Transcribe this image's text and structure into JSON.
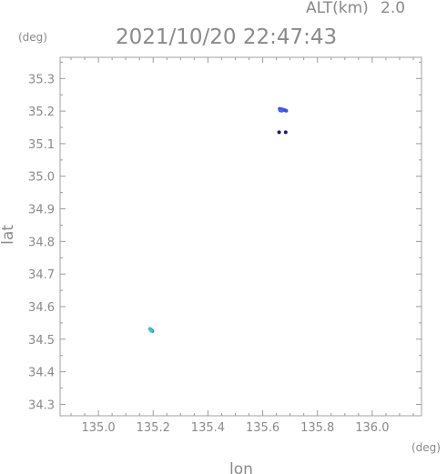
{
  "header": {
    "alt_label": "ALT(km)",
    "alt_value": "2.0",
    "timestamp": "2021/10/20 22:47:43"
  },
  "colors": {
    "axis": "#9a9a9a",
    "text": "#8a8a8a",
    "frame": "#a0a0a0"
  },
  "chart_data": {
    "type": "scatter",
    "xlabel": "lon",
    "ylabel": "lat",
    "x_unit": "(deg)",
    "y_unit": "(deg)",
    "xlim": [
      134.86,
      136.18
    ],
    "ylim": [
      34.265,
      35.365
    ],
    "x_ticks": [
      135.0,
      135.2,
      135.4,
      135.6,
      135.8,
      136.0
    ],
    "x_tick_labels": [
      "135.0",
      "135.2",
      "135.4",
      "135.6",
      "135.8",
      "136.0"
    ],
    "y_ticks": [
      34.3,
      34.4,
      34.5,
      34.6,
      34.7,
      34.8,
      34.9,
      35.0,
      35.1,
      35.2,
      35.3
    ],
    "y_tick_labels": [
      "34.3",
      "34.4",
      "34.5",
      "34.6",
      "34.7",
      "34.8",
      "34.9",
      "35.0",
      "35.1",
      "35.2",
      "35.3"
    ],
    "grid": false,
    "points": [
      {
        "x": 135.662,
        "y": 35.207,
        "color": "#3b4ff0"
      },
      {
        "x": 135.667,
        "y": 35.206,
        "color": "#3b4ff0"
      },
      {
        "x": 135.671,
        "y": 35.205,
        "color": "#3b4ff0"
      },
      {
        "x": 135.675,
        "y": 35.204,
        "color": "#3b4ff0"
      },
      {
        "x": 135.679,
        "y": 35.203,
        "color": "#3b4ff0"
      },
      {
        "x": 135.683,
        "y": 35.202,
        "color": "#3b4ff0"
      },
      {
        "x": 135.686,
        "y": 35.201,
        "color": "#3b4ff0"
      },
      {
        "x": 135.664,
        "y": 35.202,
        "color": "#4060ff"
      },
      {
        "x": 135.67,
        "y": 35.201,
        "color": "#4060ff"
      },
      {
        "x": 135.66,
        "y": 35.135,
        "color": "#1a1a80"
      },
      {
        "x": 135.684,
        "y": 35.135,
        "color": "#1a1a80"
      },
      {
        "x": 135.188,
        "y": 34.532,
        "color": "#40d8b0"
      },
      {
        "x": 135.191,
        "y": 34.53,
        "color": "#30c0c8"
      },
      {
        "x": 135.194,
        "y": 34.527,
        "color": "#2aa8e0"
      },
      {
        "x": 135.197,
        "y": 34.525,
        "color": "#3080e8"
      },
      {
        "x": 135.192,
        "y": 34.526,
        "color": "#40c8d0"
      }
    ]
  }
}
